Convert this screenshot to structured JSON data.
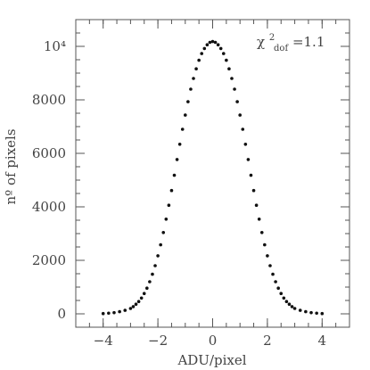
{
  "chart_data": {
    "type": "scatter",
    "xlabel": "ADU/pixel",
    "ylabel": "nº of pixels",
    "xlim": [
      -5,
      5
    ],
    "ylim": [
      -500,
      11000
    ],
    "x_major_ticks": [
      -4,
      -2,
      0,
      2,
      4
    ],
    "x_tick_labels": [
      "−4",
      "−2",
      "0",
      "2",
      "4"
    ],
    "x_minor_step": 0.5,
    "y_major_ticks": [
      0,
      2000,
      4000,
      6000,
      8000,
      10000
    ],
    "y_tick_labels": [
      "0",
      "2000",
      "4000",
      "6000",
      "8000",
      "10⁴"
    ],
    "y_minor_step": 500,
    "annotation": {
      "symbol": "χ",
      "superscript": "2",
      "subscript": "dof",
      "text": "=1.1",
      "position": "top-right"
    },
    "grid": false,
    "series": [
      {
        "marker": "dot",
        "color": "#111111",
        "x": [
          -4.0,
          -3.8,
          -3.6,
          -3.4,
          -3.2,
          -3.0,
          -2.9,
          -2.8,
          -2.7,
          -2.6,
          -2.5,
          -2.4,
          -2.3,
          -2.2,
          -2.1,
          -2.0,
          -1.9,
          -1.8,
          -1.7,
          -1.6,
          -1.5,
          -1.4,
          -1.3,
          -1.2,
          -1.1,
          -1.0,
          -0.9,
          -0.8,
          -0.7,
          -0.6,
          -0.5,
          -0.4,
          -0.3,
          -0.2,
          -0.1,
          0.0,
          0.1,
          0.2,
          0.3,
          0.4,
          0.5,
          0.6,
          0.7,
          0.8,
          0.9,
          1.0,
          1.1,
          1.2,
          1.3,
          1.4,
          1.5,
          1.6,
          1.7,
          1.8,
          1.9,
          2.0,
          2.1,
          2.2,
          2.3,
          2.4,
          2.5,
          2.6,
          2.7,
          2.8,
          2.9,
          3.0,
          3.2,
          3.4,
          3.6,
          3.8,
          4.0
        ],
        "y": [
          10,
          25,
          45,
          80,
          130,
          200,
          270,
          360,
          460,
          590,
          760,
          960,
          1200,
          1480,
          1800,
          2170,
          2580,
          3040,
          3540,
          4060,
          4610,
          5180,
          5770,
          6340,
          6900,
          7430,
          7930,
          8400,
          8800,
          9160,
          9480,
          9730,
          9920,
          10060,
          10150,
          10180,
          10150,
          10060,
          9920,
          9730,
          9480,
          9160,
          8800,
          8400,
          7930,
          7430,
          6900,
          6340,
          5770,
          5180,
          4610,
          4060,
          3540,
          3040,
          2580,
          2170,
          1800,
          1480,
          1200,
          960,
          760,
          590,
          460,
          360,
          270,
          200,
          130,
          80,
          45,
          25,
          10
        ]
      }
    ]
  }
}
